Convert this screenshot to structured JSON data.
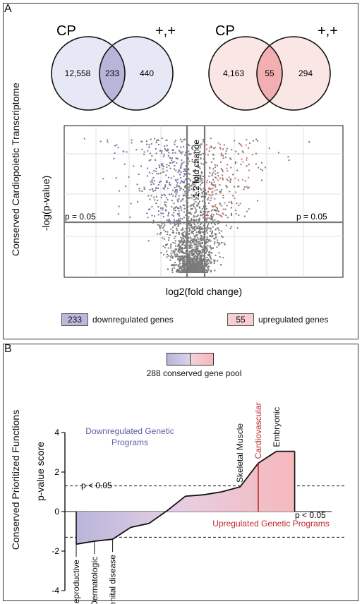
{
  "panel_a": {
    "letter": "A",
    "side_label": "Conserved Cardiopoietic Transcriptome",
    "venn_left": {
      "left_title": "CP",
      "right_title": "+,+",
      "left_only": "12,558",
      "overlap": "233",
      "right_only": "440",
      "left_fill": "#e6e8f5",
      "overlap_fill": "#b9b5da"
    },
    "venn_right": {
      "left_title": "CP",
      "right_title": "+,+",
      "left_only": "4,163",
      "overlap": "55",
      "right_only": "294",
      "left_fill": "#fbe6e6",
      "overlap_fill": "#f2aeb0"
    },
    "volcano": {
      "ylabel": "-log(p-value)",
      "xlabel": "log2(fold change)",
      "fold_label": "1.2 fold change",
      "p_left": "p = 0.05",
      "p_right": "p = 0.05",
      "colors": {
        "neutral": "#7a7a7a",
        "down": "#6a72c0",
        "up": "#e2705e"
      }
    },
    "legend": {
      "down_count": "233",
      "down_label": "downregulated genes",
      "down_color": "#bcb8dc",
      "up_count": "55",
      "up_label": "upregulated genes",
      "up_color": "#f8cfcf"
    }
  },
  "panel_b": {
    "letter": "B",
    "side_label": "Conserved Prioritized Functions",
    "pool_label": "288 conserved gene pool",
    "ylabel": "p-value score",
    "down_text_line1": "Downregulated Genetic",
    "down_text_line2": "Programs",
    "up_text": "Upregulated Genetic Programs",
    "p_top": "p < 0.05",
    "p_bottom": "p < 0.05",
    "down_color": "#5a5fa8",
    "up_color": "#c0282d"
  },
  "chart_data": [
    {
      "type": "scatter",
      "xlabel": "log2(fold change)",
      "ylabel": "-log(p-value)",
      "annotations": [
        "1.2 fold change",
        "p = 0.05",
        "p = 0.05"
      ],
      "groups": [
        {
          "name": "downregulated genes",
          "count": 233
        },
        {
          "name": "upregulated genes",
          "count": 55
        }
      ]
    },
    {
      "type": "area",
      "ylabel": "p-value score",
      "ylim": [
        -4,
        4
      ],
      "yticks": [
        4,
        2,
        0,
        -2,
        -4
      ],
      "thresholds": [
        1.3,
        -1.3
      ],
      "x": [
        0,
        1,
        2,
        3,
        4,
        5,
        6,
        7,
        8,
        9,
        10,
        11,
        12
      ],
      "values": [
        -1.65,
        -1.5,
        -1.4,
        -0.8,
        -0.6,
        0.05,
        0.78,
        0.85,
        1.0,
        1.25,
        2.45,
        3.05,
        3.05
      ],
      "labeled_points": [
        {
          "label": "Reproductive",
          "x": 0,
          "value": -1.65
        },
        {
          "label": "Dermatologic",
          "x": 1,
          "value": -1.5
        },
        {
          "label": "Congenital disease",
          "x": 2,
          "value": -1.4
        },
        {
          "label": "Skeletal Muscle",
          "x": 9,
          "value": 1.25
        },
        {
          "label": "Cardiovascular",
          "x": 10,
          "value": 2.45
        },
        {
          "label": "Embryonic",
          "x": 11,
          "value": 3.05
        }
      ]
    }
  ]
}
